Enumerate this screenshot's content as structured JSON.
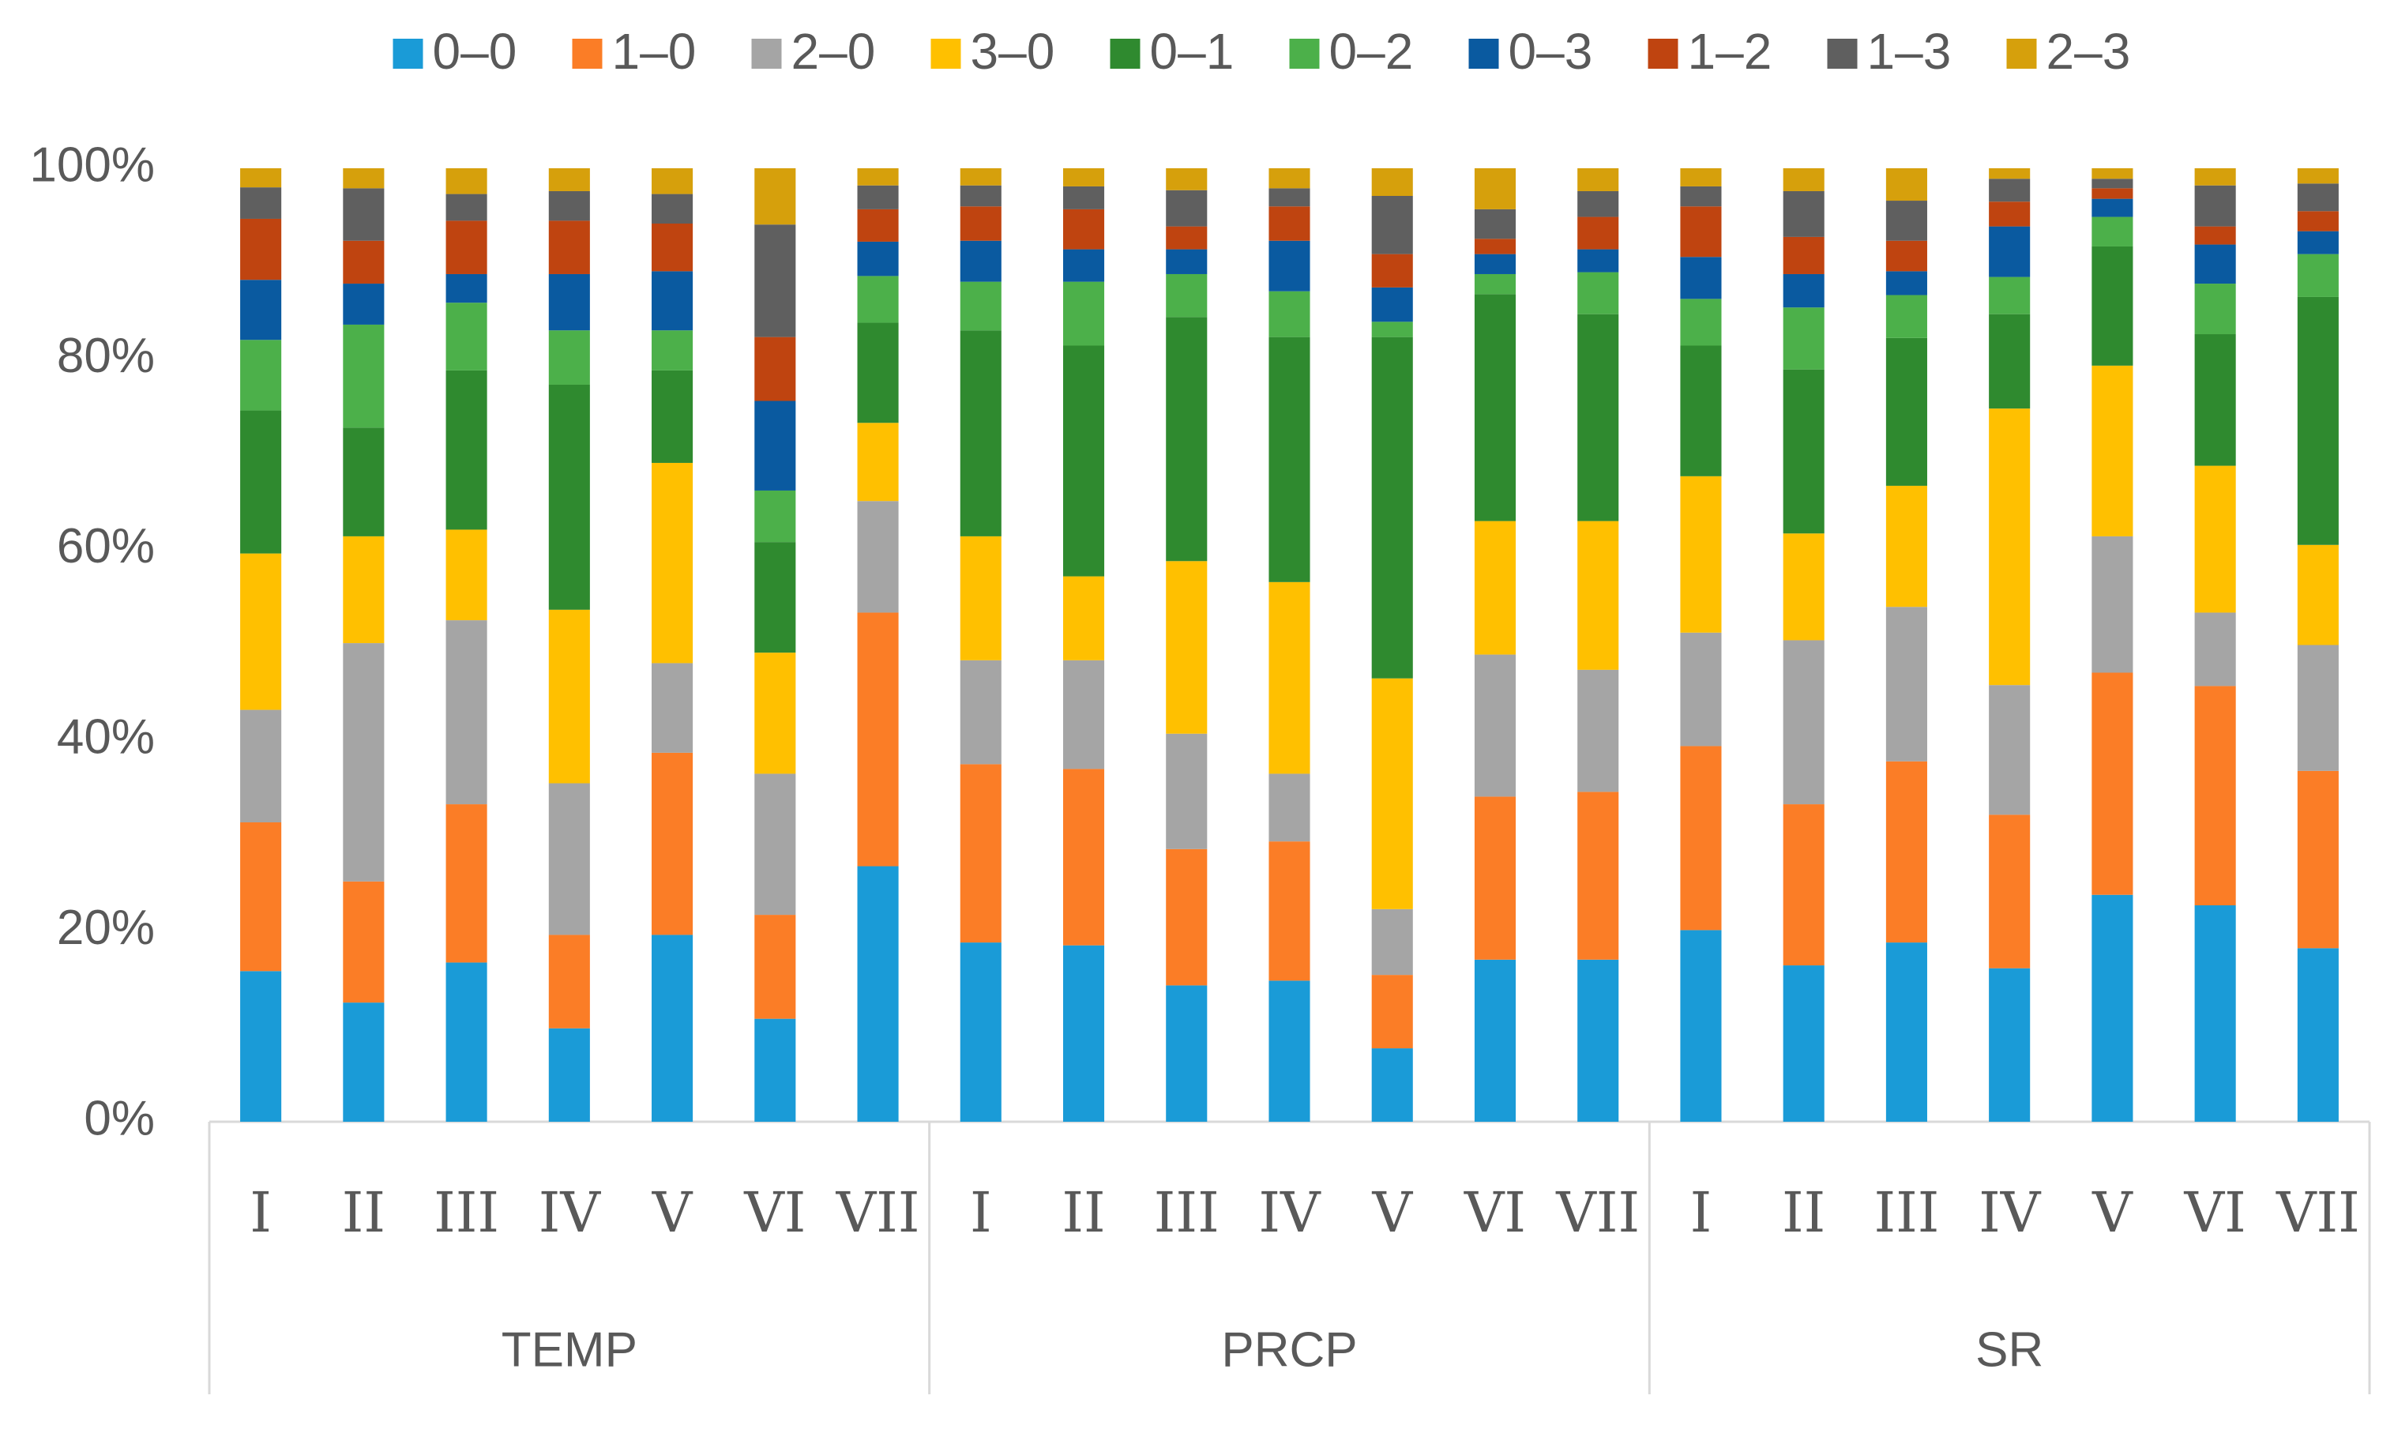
{
  "chart_data": {
    "type": "stacked_bar_100",
    "groups": [
      {
        "name": "TEMP",
        "categories": [
          "I",
          "II",
          "III",
          "IV",
          "V",
          "VI",
          "VII"
        ]
      },
      {
        "name": "PRCP",
        "categories": [
          "I",
          "II",
          "III",
          "IV",
          "V",
          "VI",
          "VII"
        ]
      },
      {
        "name": "SR",
        "categories": [
          "I",
          "II",
          "III",
          "IV",
          "V",
          "VI",
          "VII"
        ]
      }
    ],
    "ylim": [
      0,
      100
    ],
    "yticks": [
      {
        "value": 0,
        "label": "0%"
      },
      {
        "value": 20,
        "label": "20%"
      },
      {
        "value": 40,
        "label": "40%"
      },
      {
        "value": 60,
        "label": "60%"
      },
      {
        "value": 80,
        "label": "80%"
      },
      {
        "value": 100,
        "label": "100%"
      }
    ],
    "grid": false,
    "legend": "top",
    "series": [
      {
        "name": "0–0",
        "color": "#1a9bd7",
        "values": [
          15.8,
          12.5,
          16.7,
          9.8,
          19.6,
          10.8,
          26.8,
          18.8,
          18.5,
          14.3,
          14.8,
          7.7,
          17.0,
          17.0,
          20.1,
          16.4,
          18.8,
          16.1,
          23.8,
          22.7,
          18.2
        ]
      },
      {
        "name": "1–0",
        "color": "#fb7d26",
        "values": [
          15.6,
          12.7,
          16.6,
          9.8,
          19.1,
          10.9,
          26.6,
          18.7,
          18.5,
          14.3,
          14.6,
          7.7,
          17.1,
          17.6,
          19.3,
          16.9,
          19.0,
          16.1,
          23.3,
          23.0,
          18.6
        ]
      },
      {
        "name": "2–0",
        "color": "#a5a5a5",
        "values": [
          11.8,
          25.0,
          19.3,
          15.9,
          9.4,
          14.8,
          11.7,
          10.9,
          11.4,
          12.1,
          7.1,
          6.9,
          14.9,
          12.8,
          11.9,
          17.2,
          16.2,
          13.6,
          14.3,
          7.7,
          13.2
        ]
      },
      {
        "name": "3–0",
        "color": "#ffc000",
        "values": [
          16.4,
          11.2,
          9.5,
          18.2,
          21.0,
          12.7,
          8.2,
          13.0,
          8.8,
          18.1,
          20.1,
          24.2,
          14.0,
          15.6,
          16.4,
          11.2,
          12.7,
          29.0,
          17.9,
          15.4,
          10.5
        ]
      },
      {
        "name": "0–1",
        "color": "#2f8a2f",
        "values": [
          15.0,
          11.4,
          16.7,
          23.6,
          9.7,
          11.6,
          10.5,
          21.6,
          24.2,
          25.6,
          25.7,
          35.8,
          23.8,
          21.7,
          13.7,
          17.2,
          15.5,
          9.9,
          12.5,
          13.8,
          26.0
        ]
      },
      {
        "name": "0–2",
        "color": "#4cb04a",
        "values": [
          7.4,
          10.8,
          7.1,
          5.7,
          4.2,
          5.4,
          4.9,
          5.1,
          6.7,
          4.5,
          4.8,
          1.6,
          2.1,
          4.4,
          4.9,
          6.5,
          4.5,
          3.9,
          3.1,
          5.3,
          4.5
        ]
      },
      {
        "name": "0–3",
        "color": "#0a5aa0",
        "values": [
          6.3,
          4.3,
          3.0,
          5.9,
          6.2,
          9.4,
          3.6,
          4.3,
          3.4,
          2.6,
          5.3,
          3.6,
          2.1,
          2.4,
          4.4,
          3.5,
          2.5,
          5.3,
          1.9,
          4.1,
          2.4
        ]
      },
      {
        "name": "1–2",
        "color": "#bf4410",
        "values": [
          6.4,
          4.5,
          5.6,
          5.6,
          5.0,
          6.7,
          3.4,
          3.6,
          4.2,
          2.4,
          3.6,
          3.5,
          1.6,
          3.4,
          5.3,
          3.9,
          3.2,
          2.6,
          1.1,
          1.9,
          2.1
        ]
      },
      {
        "name": "1–3",
        "color": "#5f5f5f",
        "values": [
          3.3,
          5.5,
          2.8,
          3.1,
          3.1,
          11.8,
          2.5,
          2.2,
          2.4,
          3.8,
          1.9,
          6.1,
          3.1,
          2.7,
          2.1,
          4.8,
          4.2,
          2.4,
          1.0,
          4.3,
          2.9
        ]
      },
      {
        "name": "2–3",
        "color": "#d6a00c",
        "values": [
          2.0,
          2.1,
          2.7,
          2.4,
          2.7,
          5.9,
          1.8,
          1.8,
          1.9,
          2.3,
          2.1,
          2.9,
          4.3,
          2.4,
          1.9,
          2.4,
          3.4,
          1.1,
          1.1,
          1.8,
          1.6
        ]
      }
    ]
  }
}
